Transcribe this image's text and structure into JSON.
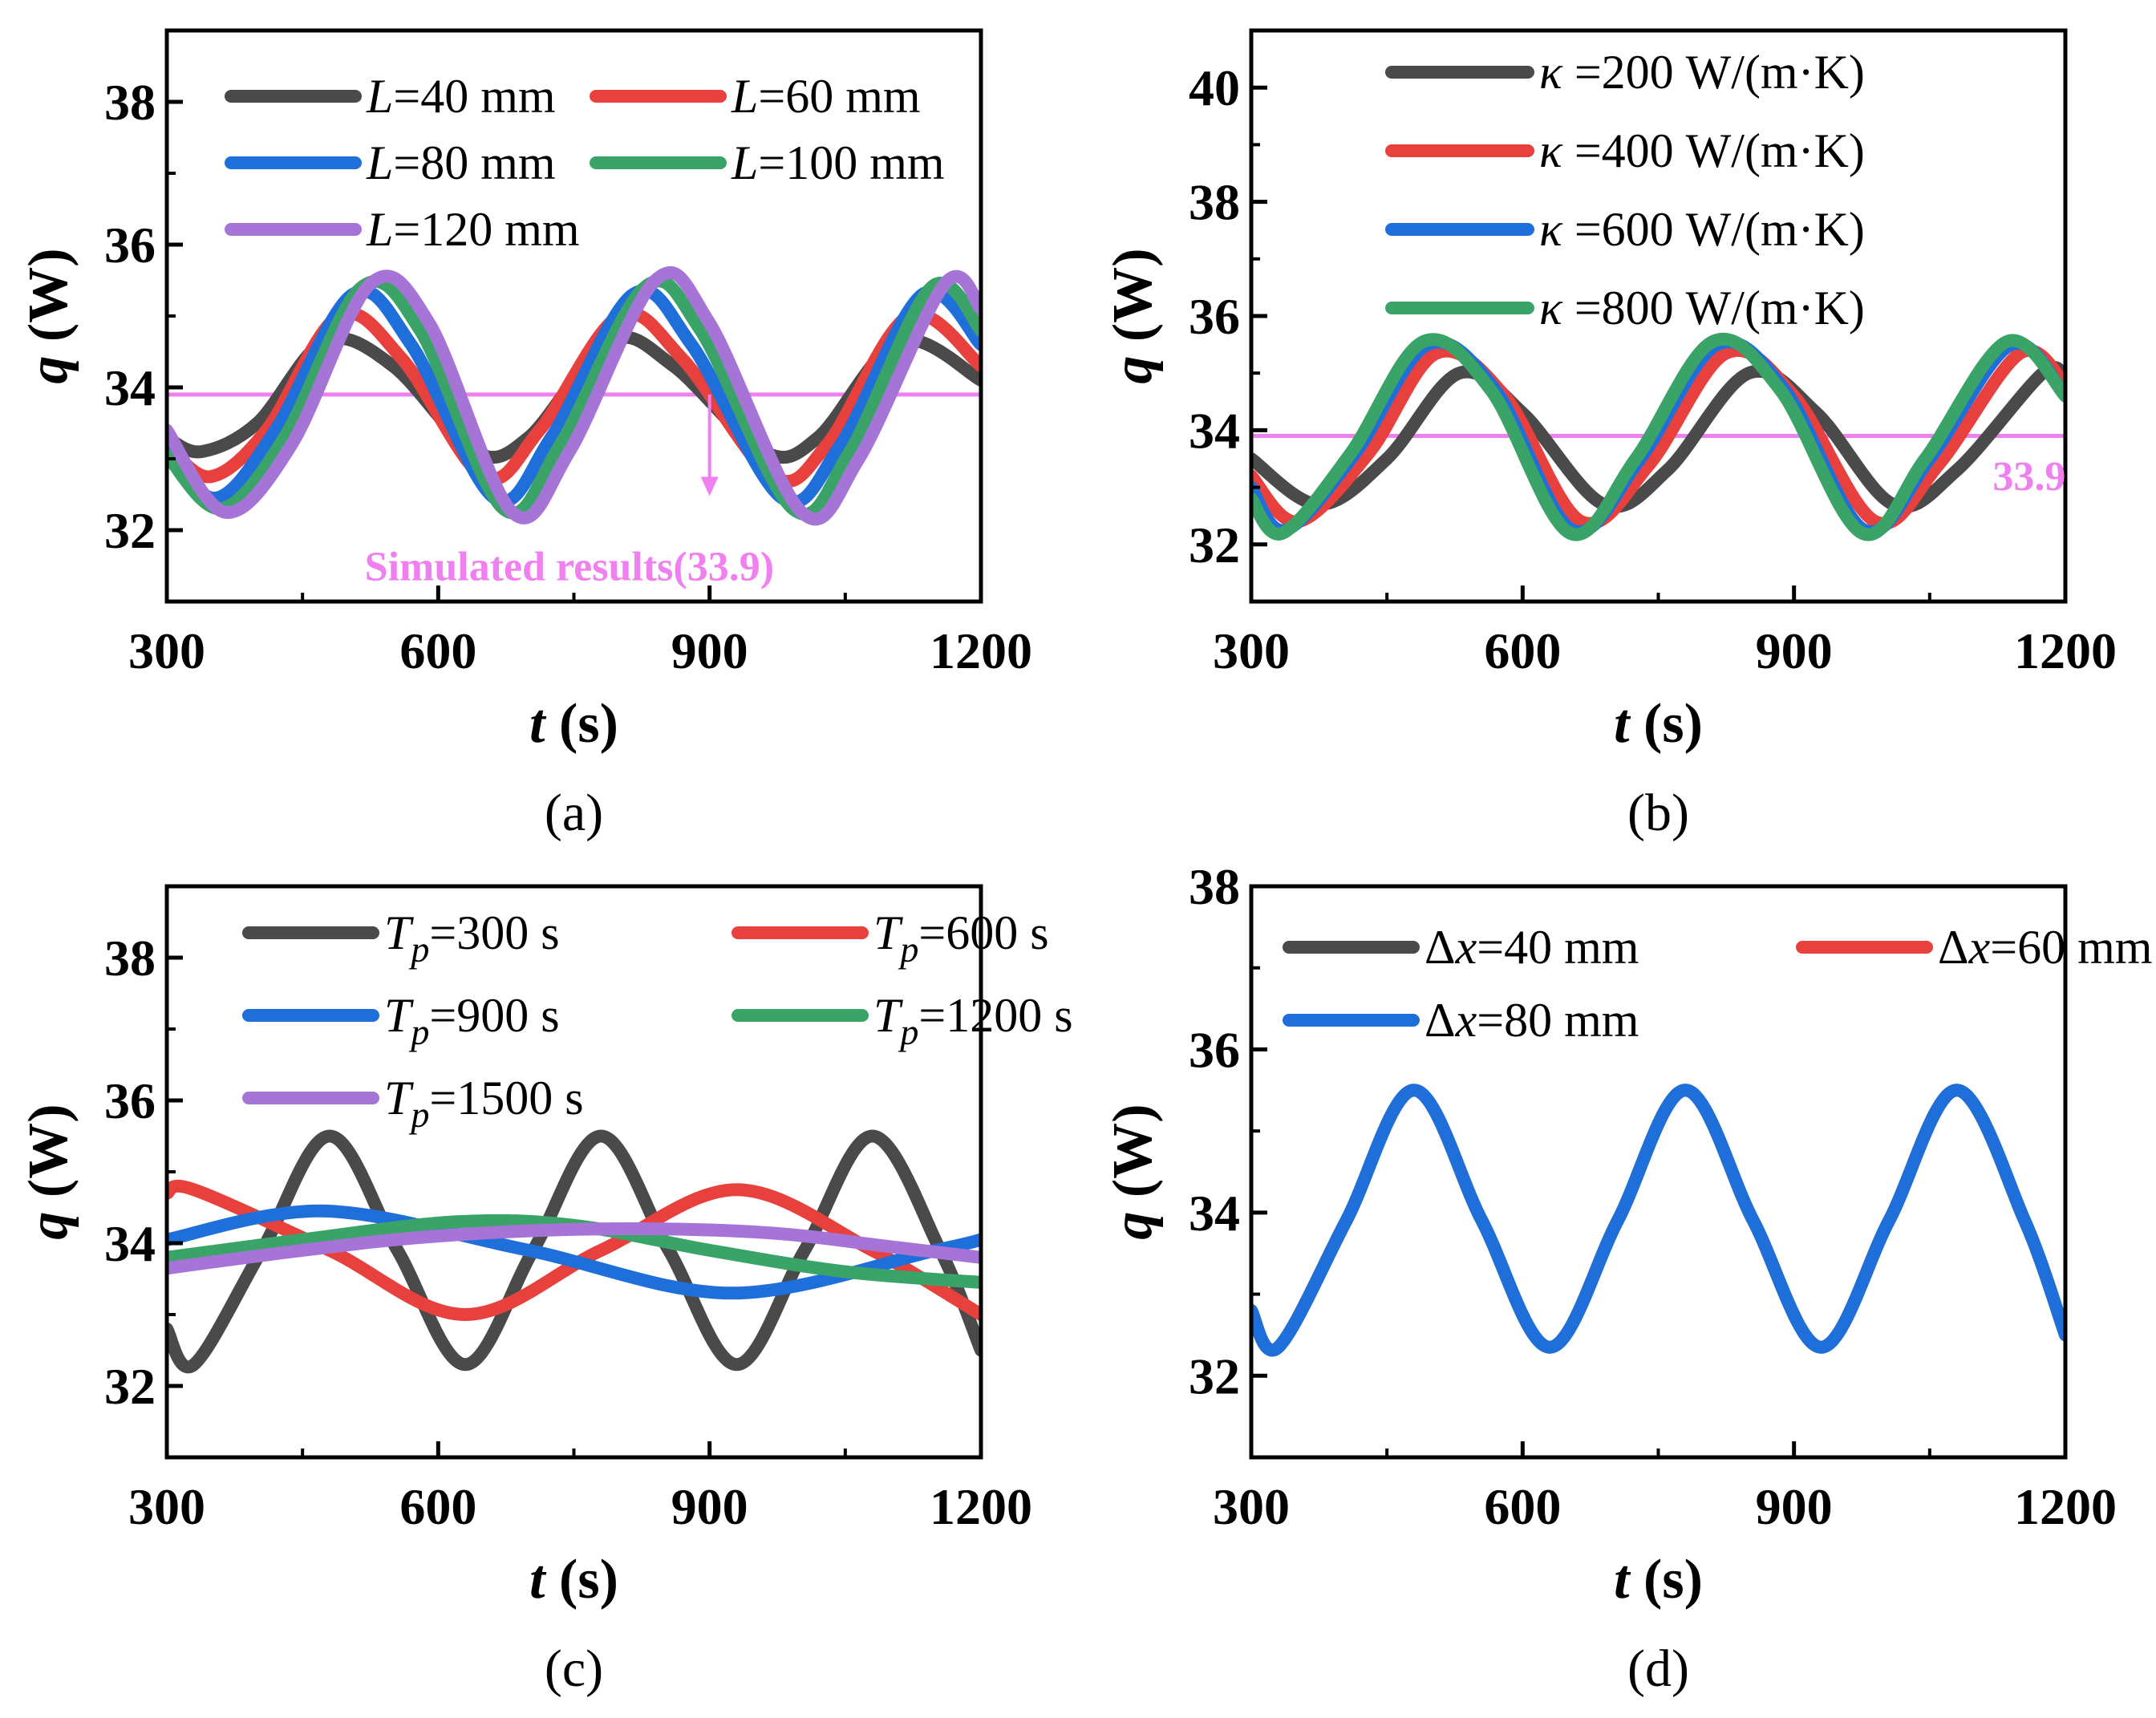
{
  "chart_data": [
    {
      "panel_label": "(a)",
      "type": "line",
      "xlabel": {
        "var": "t",
        "unit": " (s)"
      },
      "ylabel": {
        "var": "q",
        "unit": " (W)"
      },
      "xlim": [
        300,
        1200
      ],
      "ylim": [
        31,
        39
      ],
      "xticks": [
        "300",
        "600",
        "900",
        "1200"
      ],
      "yticks": [
        "32",
        "34",
        "36",
        "38"
      ],
      "legend": {
        "placement": "top",
        "columns": 2
      },
      "series": [
        {
          "label_var": "L",
          "label_rest": "=40 mm",
          "color": "#4a4a4a",
          "x": [
            300,
            338,
            400,
            475,
            550,
            640,
            700,
            790,
            860,
            960,
            1020,
            1110,
            1200
          ],
          "y": [
            33.3,
            33.1,
            33.5,
            34.65,
            34.3,
            33.1,
            33.3,
            34.65,
            34.3,
            33.1,
            33.3,
            34.65,
            34.1
          ]
        },
        {
          "label_var": "L",
          "label_rest": "=60 mm",
          "color": "#e8403c",
          "x": [
            300,
            348,
            410,
            490,
            560,
            650,
            712,
            800,
            870,
            970,
            1030,
            1120,
            1200
          ],
          "y": [
            33.2,
            32.75,
            33.4,
            35.0,
            34.4,
            32.75,
            33.4,
            35.0,
            34.4,
            32.75,
            33.2,
            35.0,
            34.3
          ]
        },
        {
          "label_var": "L",
          "label_rest": "=80 mm",
          "color": "#1f6fdb",
          "x": [
            300,
            355,
            420,
            505,
            570,
            662,
            725,
            815,
            880,
            980,
            1045,
            1135,
            1200
          ],
          "y": [
            33.1,
            32.45,
            33.4,
            35.3,
            34.6,
            32.45,
            33.3,
            35.3,
            34.6,
            32.45,
            33.2,
            35.3,
            34.6
          ]
        },
        {
          "label_var": "L",
          "label_rest": "=100 mm",
          "color": "#3aa468",
          "x": [
            300,
            360,
            430,
            515,
            580,
            672,
            735,
            828,
            890,
            992,
            1055,
            1145,
            1200
          ],
          "y": [
            33.05,
            32.3,
            33.3,
            35.4,
            34.8,
            32.3,
            33.2,
            35.4,
            34.8,
            32.3,
            33.1,
            35.4,
            34.8
          ]
        },
        {
          "label_var": "L",
          "label_rest": "=120 mm",
          "color": "#a674d6",
          "x": [
            300,
            365,
            438,
            525,
            590,
            682,
            745,
            840,
            900,
            1002,
            1065,
            1160,
            1200
          ],
          "y": [
            33.4,
            32.25,
            33.2,
            35.45,
            34.9,
            32.25,
            33.1,
            35.5,
            34.9,
            32.25,
            33.0,
            35.45,
            35.1
          ]
        }
      ],
      "reference_line": {
        "y": 33.9,
        "color": "#f07ff0"
      },
      "annotation": {
        "text": "Simulated results(33.9)",
        "color": "#f07ff0",
        "arrow_x": 900,
        "arrow_from_y": 33.9,
        "arrow_to_y": 32.5,
        "text_x": 745,
        "text_y": 31.3
      }
    },
    {
      "panel_label": "(b)",
      "type": "line",
      "xlabel": {
        "var": "t",
        "unit": " (s)"
      },
      "ylabel": {
        "var": "q",
        "unit": " (W)"
      },
      "xlim": [
        300,
        1200
      ],
      "ylim": [
        31,
        41
      ],
      "xticks": [
        "300",
        "600",
        "900",
        "1200"
      ],
      "yticks": [
        "32",
        "34",
        "36",
        "38",
        "40"
      ],
      "legend": {
        "placement": "top-right",
        "columns": 1
      },
      "series": [
        {
          "label_var": "κ",
          "label_rest": " =200 W/(m·K)",
          "color": "#4a4a4a",
          "x": [
            300,
            375,
            450,
            530,
            600,
            690,
            760,
            850,
            925,
            1010,
            1080,
            1175,
            1200
          ],
          "y": [
            33.5,
            32.7,
            33.5,
            35.0,
            34.3,
            32.7,
            33.3,
            35.0,
            34.3,
            32.7,
            33.3,
            35.0,
            34.9
          ]
        },
        {
          "label_var": "κ",
          "label_rest": " =400 W/(m·K)",
          "color": "#e8403c",
          "x": [
            300,
            352,
            430,
            505,
            580,
            665,
            740,
            825,
            900,
            990,
            1060,
            1150,
            1200
          ],
          "y": [
            33.2,
            32.4,
            33.6,
            35.35,
            34.6,
            32.4,
            33.4,
            35.35,
            34.6,
            32.4,
            33.4,
            35.35,
            34.8
          ]
        },
        {
          "label_var": "κ",
          "label_rest": " =600 W/(m·K)",
          "color": "#1f6fdb",
          "x": [
            300,
            338,
            415,
            495,
            570,
            655,
            730,
            815,
            890,
            978,
            1050,
            1140,
            1200
          ],
          "y": [
            33.0,
            32.25,
            33.6,
            35.5,
            34.7,
            32.25,
            33.5,
            35.5,
            34.7,
            32.25,
            33.5,
            35.5,
            34.6
          ]
        },
        {
          "label_var": "κ",
          "label_rest": " =800 W/(m·K)",
          "color": "#3aa468",
          "x": [
            300,
            335,
            410,
            490,
            565,
            652,
            725,
            810,
            885,
            975,
            1045,
            1135,
            1200
          ],
          "y": [
            32.8,
            32.2,
            33.6,
            35.55,
            34.7,
            32.2,
            33.5,
            35.55,
            34.7,
            32.2,
            33.5,
            35.55,
            34.6
          ]
        }
      ],
      "reference_line": {
        "y": 33.9,
        "color": "#f07ff0"
      },
      "annotation": {
        "text": "33.9",
        "color": "#f07ff0",
        "text_x": 1160,
        "text_y": 32.95
      }
    },
    {
      "panel_label": "(c)",
      "type": "line",
      "xlabel": {
        "var": "t",
        "unit": " (s)"
      },
      "ylabel": {
        "var": "q",
        "unit": " (W)"
      },
      "xlim": [
        300,
        1200
      ],
      "ylim": [
        31,
        39
      ],
      "xticks": [
        "300",
        "600",
        "900",
        "1200"
      ],
      "yticks": [
        "32",
        "34",
        "36",
        "38"
      ],
      "legend": {
        "placement": "top",
        "columns": 2
      },
      "series": [
        {
          "label_var": "T",
          "label_sub": "p",
          "label_rest": "=300 s",
          "color": "#4a4a4a",
          "x": [
            300,
            330,
            405,
            480,
            555,
            630,
            705,
            780,
            855,
            930,
            1005,
            1080,
            1155,
            1200
          ],
          "y": [
            32.8,
            32.3,
            33.9,
            35.5,
            33.9,
            32.3,
            33.9,
            35.5,
            33.9,
            32.3,
            33.9,
            35.5,
            33.9,
            32.5
          ]
        },
        {
          "label_var": "T",
          "label_sub": "p",
          "label_rest": "=600 s",
          "color": "#e8403c",
          "x": [
            300,
            330,
            480,
            630,
            780,
            930,
            1080,
            1200
          ],
          "y": [
            34.7,
            34.75,
            33.9,
            33.0,
            33.9,
            34.75,
            33.9,
            33.0
          ]
        },
        {
          "label_var": "T",
          "label_sub": "p",
          "label_rest": "=900 s",
          "color": "#1f6fdb",
          "x": [
            300,
            475,
            700,
            925,
            1150,
            1200
          ],
          "y": [
            34.05,
            34.45,
            33.9,
            33.3,
            33.9,
            34.05
          ]
        },
        {
          "label_var": "T",
          "label_sub": "p",
          "label_rest": "=1200 s",
          "color": "#3aa468",
          "x": [
            300,
            450,
            620,
            750,
            900,
            1050,
            1200
          ],
          "y": [
            33.8,
            34.05,
            34.3,
            34.25,
            33.9,
            33.6,
            33.45
          ]
        },
        {
          "label_var": "T",
          "label_sub": "p",
          "label_rest": "=1500 s",
          "color": "#a674d6",
          "x": [
            300,
            450,
            600,
            780,
            960,
            1100,
            1200
          ],
          "y": [
            33.65,
            33.9,
            34.1,
            34.2,
            34.15,
            33.95,
            33.8
          ]
        }
      ]
    },
    {
      "panel_label": "(d)",
      "type": "line",
      "xlabel": {
        "var": "t",
        "unit": " (s)"
      },
      "ylabel": {
        "var": "q",
        "unit": " (W)"
      },
      "xlim": [
        300,
        1200
      ],
      "ylim": [
        31,
        38
      ],
      "xticks": [
        "300",
        "600",
        "900",
        "1200"
      ],
      "yticks": [
        "32",
        "34",
        "36",
        "38"
      ],
      "legend": {
        "placement": "top-left",
        "columns": 2
      },
      "series": [
        {
          "label_prefix": "Δ",
          "label_var": "x",
          "label_rest": "=40 mm",
          "color": "#4a4a4a",
          "x": [
            300,
            330,
            405,
            480,
            555,
            630,
            705,
            780,
            855,
            930,
            1005,
            1080,
            1155,
            1200
          ],
          "y": [
            32.8,
            32.35,
            33.9,
            35.5,
            33.9,
            32.35,
            33.9,
            35.5,
            33.9,
            32.35,
            33.9,
            35.5,
            33.9,
            32.5
          ]
        },
        {
          "label_prefix": "Δ",
          "label_var": "x",
          "label_rest": "=60 mm",
          "color": "#e8403c",
          "x": [
            300,
            330,
            405,
            480,
            555,
            630,
            705,
            780,
            855,
            930,
            1005,
            1080,
            1155,
            1200
          ],
          "y": [
            32.8,
            32.35,
            33.9,
            35.5,
            33.9,
            32.35,
            33.9,
            35.5,
            33.9,
            32.35,
            33.9,
            35.5,
            33.9,
            32.5
          ]
        },
        {
          "label_prefix": "Δ",
          "label_var": "x",
          "label_rest": "=80 mm",
          "color": "#1f6fdb",
          "x": [
            300,
            330,
            405,
            480,
            555,
            630,
            705,
            780,
            855,
            930,
            1005,
            1080,
            1155,
            1200
          ],
          "y": [
            32.8,
            32.35,
            33.9,
            35.5,
            33.9,
            32.35,
            33.9,
            35.5,
            33.9,
            32.35,
            33.9,
            35.5,
            33.9,
            32.5
          ]
        }
      ]
    }
  ]
}
